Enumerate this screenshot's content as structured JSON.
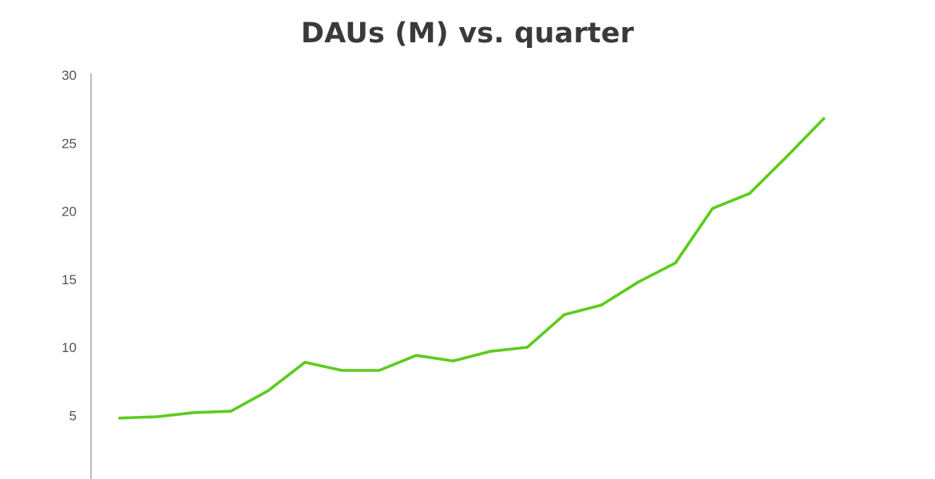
{
  "chart_data": {
    "type": "line",
    "title": "DAUs (M) vs. quarter",
    "xlabel": "",
    "ylabel": "",
    "ylim": [
      0,
      30
    ],
    "y_ticks": [
      5,
      10,
      15,
      20,
      25,
      30
    ],
    "y_tick_labels": [
      "5",
      "10",
      "15",
      "20",
      "25",
      "30"
    ],
    "grid": false,
    "legend": "none",
    "line_color": "#5ecb1e",
    "axis_color": "#a6a6a6",
    "x": [
      1,
      2,
      3,
      4,
      5,
      6,
      7,
      8,
      9,
      10,
      11,
      12,
      13,
      14,
      15,
      16,
      17,
      18,
      19,
      20
    ],
    "series": [
      {
        "values": [
          4.8,
          4.9,
          5.2,
          5.3,
          6.8,
          8.9,
          8.3,
          8.3,
          9.4,
          9.0,
          9.7,
          10.0,
          12.4,
          13.1,
          14.8,
          16.2,
          20.2,
          21.3,
          24.0,
          26.8
        ]
      }
    ]
  }
}
